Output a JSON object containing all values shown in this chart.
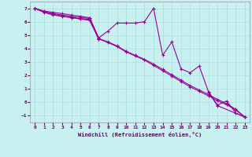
{
  "xlabel": "Windchill (Refroidissement éolien,°C)",
  "bg_color": "#c8f0f0",
  "line_color": "#990099",
  "grid_color": "#aadddd",
  "x_values": [
    0,
    1,
    2,
    3,
    4,
    5,
    6,
    7,
    8,
    9,
    10,
    11,
    12,
    13,
    14,
    15,
    16,
    17,
    18,
    19,
    20,
    21,
    22,
    23
  ],
  "line1": [
    7.0,
    6.8,
    6.7,
    6.6,
    6.5,
    6.4,
    6.3,
    4.8,
    5.3,
    5.9,
    5.9,
    5.9,
    6.0,
    7.0,
    3.5,
    4.5,
    2.5,
    2.2,
    2.7,
    0.8,
    -0.2,
    0.1,
    -0.8,
    -1.1
  ],
  "line2": [
    7.0,
    6.75,
    6.6,
    6.5,
    6.4,
    6.3,
    6.25,
    4.75,
    4.5,
    4.2,
    3.8,
    3.5,
    3.2,
    2.85,
    2.45,
    2.05,
    1.65,
    1.25,
    0.92,
    0.58,
    0.22,
    -0.1,
    -0.52,
    -1.1
  ],
  "line3": [
    7.0,
    6.72,
    6.55,
    6.42,
    6.32,
    6.22,
    6.18,
    4.72,
    4.45,
    4.15,
    3.75,
    3.45,
    3.15,
    2.75,
    2.35,
    1.95,
    1.55,
    1.15,
    0.82,
    0.48,
    0.12,
    -0.18,
    -0.58,
    -1.1
  ],
  "line4_x": [
    0,
    1,
    2,
    3,
    4,
    5,
    6,
    7,
    19,
    20,
    23
  ],
  "line4_y": [
    7.0,
    6.7,
    6.5,
    6.4,
    6.3,
    6.2,
    6.1,
    4.7,
    0.75,
    -0.25,
    -1.1
  ],
  "ylim": [
    -1.5,
    7.5
  ],
  "xlim": [
    -0.5,
    23.5
  ],
  "yticks": [
    -1,
    0,
    1,
    2,
    3,
    4,
    5,
    6,
    7
  ],
  "xticks": [
    0,
    1,
    2,
    3,
    4,
    5,
    6,
    7,
    8,
    9,
    10,
    11,
    12,
    13,
    14,
    15,
    16,
    17,
    18,
    19,
    20,
    21,
    22,
    23
  ]
}
